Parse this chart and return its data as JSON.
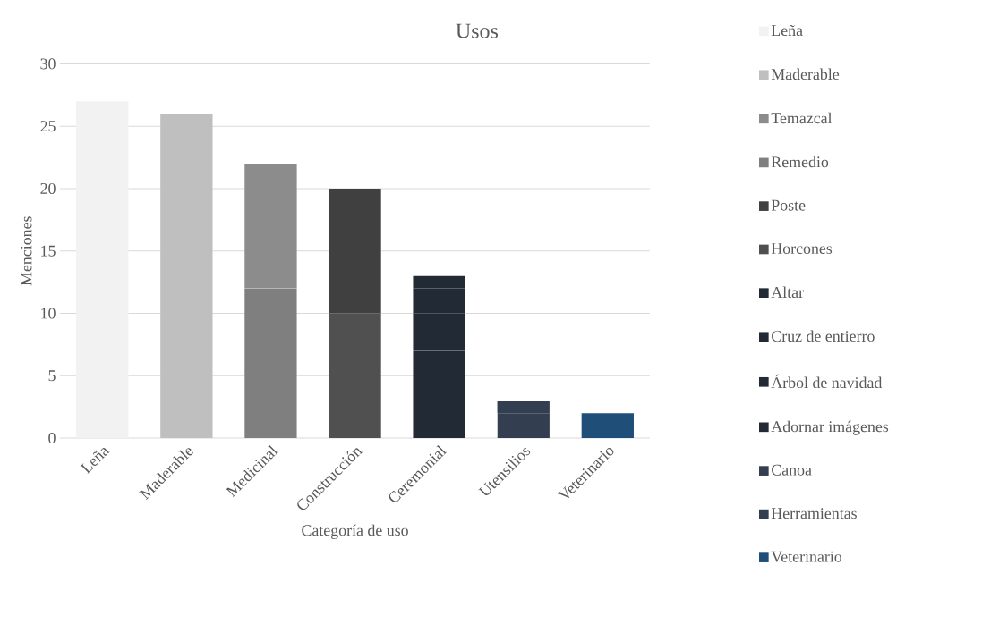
{
  "chart_data": {
    "type": "bar",
    "stacked": true,
    "title": "Usos",
    "xlabel": "Categoría de uso",
    "ylabel": "Menciones",
    "categories": [
      "Leña",
      "Maderable",
      "Medicinal",
      "Construcción",
      "Ceremonial",
      "Utensilios",
      "Veterinario"
    ],
    "ylim": [
      0,
      30
    ],
    "yticks": [
      0,
      5,
      10,
      15,
      20,
      25,
      30
    ],
    "grid": "y",
    "legend": "right",
    "series": [
      {
        "name": "Veterinario",
        "color": "#1f4e79",
        "values": [
          null,
          null,
          null,
          null,
          null,
          null,
          2
        ]
      },
      {
        "name": "Herramientas",
        "color": "#333f50",
        "values": [
          null,
          null,
          null,
          null,
          null,
          2,
          null
        ]
      },
      {
        "name": "Canoa",
        "color": "#333f50",
        "values": [
          null,
          null,
          null,
          null,
          null,
          1,
          null
        ]
      },
      {
        "name": "Adornar imágenes",
        "color": "#222a35",
        "values": [
          null,
          null,
          null,
          null,
          7,
          null,
          null
        ]
      },
      {
        "name": "Árbol de navidad",
        "color": "#222a35",
        "values": [
          null,
          null,
          null,
          null,
          3,
          null,
          null
        ]
      },
      {
        "name": "Cruz de entierro",
        "color": "#222a35",
        "values": [
          null,
          null,
          null,
          null,
          2,
          null,
          null
        ]
      },
      {
        "name": "Altar",
        "color": "#222a35",
        "values": [
          null,
          null,
          null,
          null,
          1,
          null,
          null
        ]
      },
      {
        "name": "Horcones",
        "color": "#505050",
        "values": [
          null,
          null,
          null,
          10,
          null,
          null,
          null
        ]
      },
      {
        "name": "Poste",
        "color": "#404040",
        "values": [
          null,
          null,
          null,
          10,
          null,
          null,
          null
        ]
      },
      {
        "name": "Remedio",
        "color": "#7f7f7f",
        "values": [
          null,
          null,
          12,
          null,
          null,
          null,
          null
        ]
      },
      {
        "name": "Temazcal",
        "color": "#8c8c8c",
        "values": [
          null,
          null,
          10,
          null,
          null,
          null,
          null
        ]
      },
      {
        "name": "Maderable",
        "color": "#bfbfbf",
        "values": [
          null,
          26,
          null,
          null,
          null,
          null,
          null
        ]
      },
      {
        "name": "Leña",
        "color": "#f2f2f2",
        "values": [
          27,
          null,
          null,
          null,
          null,
          null,
          null
        ]
      }
    ]
  }
}
